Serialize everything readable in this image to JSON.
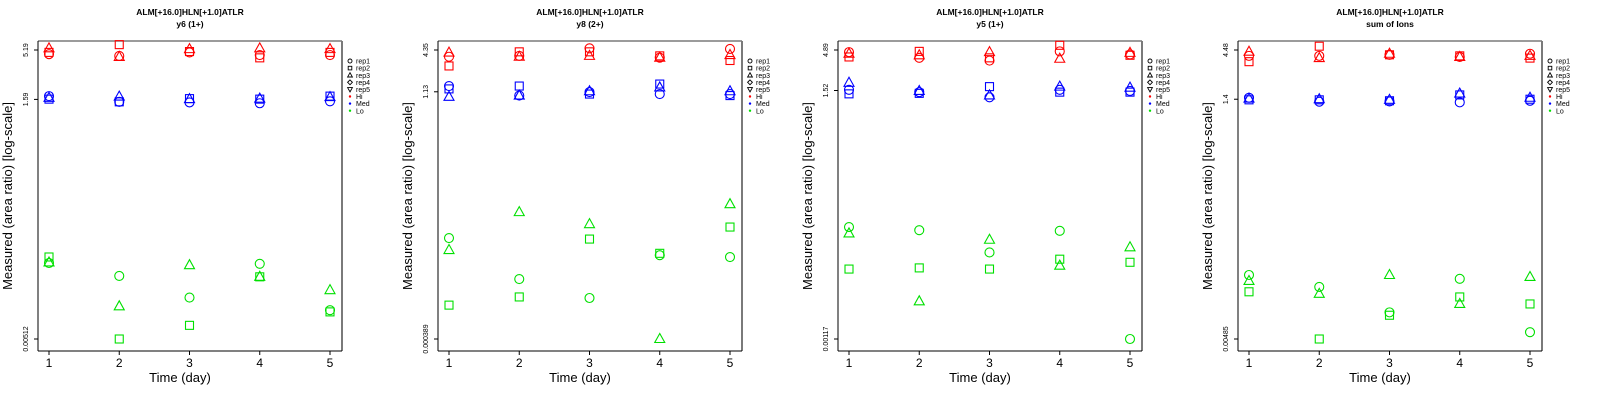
{
  "legend": {
    "shapes": [
      {
        "label": "rep1",
        "shape": "circle"
      },
      {
        "label": "rep2",
        "shape": "square"
      },
      {
        "label": "rep3",
        "shape": "triangle-up"
      },
      {
        "label": "rep4",
        "shape": "diamond"
      },
      {
        "label": "rep5",
        "shape": "triangle-down"
      }
    ],
    "levels": [
      {
        "label": "Hi",
        "color": "#ff0000"
      },
      {
        "label": "Med",
        "color": "#0000ff"
      },
      {
        "label": "Lo",
        "color": "#00e000"
      }
    ]
  },
  "chart_data": [
    {
      "type": "scatter",
      "title": "ALM[+16.0]HLN[+1.0]ATLR",
      "subtitle": "y6 (1+)",
      "xlabel": "Time (day)",
      "ylabel": "Measured (area ratio) [log-scale]",
      "xticks": [
        "1",
        "2",
        "3",
        "4",
        "5"
      ],
      "yticks": [
        {
          "value": 5.19,
          "label": "5.19"
        },
        {
          "value": 1.59,
          "label": "1.59"
        },
        {
          "value": 0.00512,
          "label": "0.00512"
        }
      ],
      "yscale": "log",
      "xlim": [
        0.8,
        5.2
      ],
      "legend_position": "right",
      "series": [
        {
          "level": "Hi",
          "rep": "rep1",
          "x": [
            1,
            2,
            3,
            4,
            5
          ],
          "y": [
            4.7,
            4.5,
            4.9,
            4.6,
            4.6
          ]
        },
        {
          "level": "Hi",
          "rep": "rep2",
          "x": [
            1,
            2,
            3,
            4,
            5
          ],
          "y": [
            4.9,
            5.9,
            5.0,
            4.3,
            4.9
          ]
        },
        {
          "level": "Hi",
          "rep": "rep3",
          "x": [
            1,
            2,
            3,
            4,
            5
          ],
          "y": [
            5.4,
            4.4,
            5.3,
            5.4,
            5.3
          ]
        },
        {
          "level": "Med",
          "rep": "rep1",
          "x": [
            1,
            2,
            3,
            4,
            5
          ],
          "y": [
            1.72,
            1.5,
            1.48,
            1.45,
            1.52
          ]
        },
        {
          "level": "Med",
          "rep": "rep2",
          "x": [
            1,
            2,
            3,
            4,
            5
          ],
          "y": [
            1.6,
            1.5,
            1.62,
            1.6,
            1.72
          ]
        },
        {
          "level": "Med",
          "rep": "rep3",
          "x": [
            1,
            2,
            3,
            4,
            5
          ],
          "y": [
            1.65,
            1.7,
            1.6,
            1.62,
            1.68
          ]
        },
        {
          "level": "Lo",
          "rep": "rep1",
          "x": [
            1,
            2,
            3,
            4,
            5
          ],
          "y": [
            0.0316,
            0.0232,
            0.0138,
            0.031,
            0.0102
          ]
        },
        {
          "level": "Lo",
          "rep": "rep2",
          "x": [
            1,
            2,
            3,
            4,
            5
          ],
          "y": [
            0.0365,
            0.00512,
            0.0071,
            0.0227,
            0.0098
          ]
        },
        {
          "level": "Lo",
          "rep": "rep3",
          "x": [
            1,
            2,
            3,
            4,
            5
          ],
          "y": [
            0.032,
            0.0112,
            0.03,
            0.0227,
            0.0165
          ]
        }
      ]
    },
    {
      "type": "scatter",
      "title": "ALM[+16.0]HLN[+1.0]ATLR",
      "subtitle": "y8 (2+)",
      "xlabel": "Time (day)",
      "ylabel": "Measured (area ratio) [log-scale]",
      "xticks": [
        "1",
        "2",
        "3",
        "4",
        "5"
      ],
      "yticks": [
        {
          "value": 4.35,
          "label": "4.35"
        },
        {
          "value": 1.13,
          "label": "1.13"
        },
        {
          "value": 0.000389,
          "label": "0.000389"
        }
      ],
      "yscale": "log",
      "xlim": [
        0.8,
        5.2
      ],
      "legend_position": "right",
      "series": [
        {
          "level": "Hi",
          "rep": "rep1",
          "x": [
            1,
            2,
            3,
            4,
            5
          ],
          "y": [
            3.5,
            3.6,
            4.6,
            3.4,
            4.5
          ]
        },
        {
          "level": "Hi",
          "rep": "rep2",
          "x": [
            1,
            2,
            3,
            4,
            5
          ],
          "y": [
            2.6,
            4.1,
            4.1,
            3.6,
            3.1
          ]
        },
        {
          "level": "Hi",
          "rep": "rep3",
          "x": [
            1,
            2,
            3,
            4,
            5
          ],
          "y": [
            4.0,
            3.5,
            3.6,
            3.4,
            3.7
          ]
        },
        {
          "level": "Med",
          "rep": "rep1",
          "x": [
            1,
            2,
            3,
            4,
            5
          ],
          "y": [
            1.36,
            1.0,
            1.12,
            1.05,
            1.05
          ]
        },
        {
          "level": "Med",
          "rep": "rep2",
          "x": [
            1,
            2,
            3,
            4,
            5
          ],
          "y": [
            1.24,
            1.36,
            1.05,
            1.45,
            1.0
          ]
        },
        {
          "level": "Med",
          "rep": "rep3",
          "x": [
            1,
            2,
            3,
            4,
            5
          ],
          "y": [
            0.96,
            1.0,
            1.15,
            1.3,
            1.15
          ]
        },
        {
          "level": "Lo",
          "rep": "rep1",
          "x": [
            1,
            2,
            3,
            4,
            5
          ],
          "y": [
            0.0101,
            0.00269,
            0.00146,
            0.0058,
            0.00547
          ]
        },
        {
          "level": "Lo",
          "rep": "rep2",
          "x": [
            1,
            2,
            3,
            4,
            5
          ],
          "y": [
            0.00116,
            0.00151,
            0.00977,
            0.00617,
            0.0144
          ]
        },
        {
          "level": "Lo",
          "rep": "rep3",
          "x": [
            1,
            2,
            3,
            4,
            5
          ],
          "y": [
            0.00686,
            0.0233,
            0.0158,
            0.000389,
            0.0301
          ]
        }
      ]
    },
    {
      "type": "scatter",
      "title": "ALM[+16.0]HLN[+1.0]ATLR",
      "subtitle": "y5 (1+)",
      "xlabel": "Time (day)",
      "ylabel": "Measured (area ratio) [log-scale]",
      "xticks": [
        "1",
        "2",
        "3",
        "4",
        "5"
      ],
      "yticks": [
        {
          "value": 4.89,
          "label": "4.89"
        },
        {
          "value": 1.52,
          "label": "1.52"
        },
        {
          "value": 0.00117,
          "label": "0.00117"
        }
      ],
      "yscale": "log",
      "xlim": [
        0.8,
        5.2
      ],
      "legend_position": "right",
      "series": [
        {
          "level": "Hi",
          "rep": "rep1",
          "x": [
            1,
            2,
            3,
            4,
            5
          ],
          "y": [
            4.6,
            3.9,
            3.6,
            4.7,
            4.3
          ]
        },
        {
          "level": "Hi",
          "rep": "rep2",
          "x": [
            1,
            2,
            3,
            4,
            5
          ],
          "y": [
            4.0,
            4.7,
            3.9,
            5.6,
            4.2
          ]
        },
        {
          "level": "Hi",
          "rep": "rep3",
          "x": [
            1,
            2,
            3,
            4,
            5
          ],
          "y": [
            4.4,
            4.2,
            4.6,
            3.8,
            4.5
          ]
        },
        {
          "level": "Med",
          "rep": "rep1",
          "x": [
            1,
            2,
            3,
            4,
            5
          ],
          "y": [
            1.55,
            1.45,
            1.25,
            1.55,
            1.5
          ]
        },
        {
          "level": "Med",
          "rep": "rep2",
          "x": [
            1,
            2,
            3,
            4,
            5
          ],
          "y": [
            1.38,
            1.4,
            1.7,
            1.45,
            1.45
          ]
        },
        {
          "level": "Med",
          "rep": "rep3",
          "x": [
            1,
            2,
            3,
            4,
            5
          ],
          "y": [
            1.9,
            1.5,
            1.32,
            1.7,
            1.65
          ]
        },
        {
          "level": "Lo",
          "rep": "rep1",
          "x": [
            1,
            2,
            3,
            4,
            5
          ],
          "y": [
            0.0296,
            0.027,
            0.0142,
            0.0265,
            0.00117
          ]
        },
        {
          "level": "Lo",
          "rep": "rep2",
          "x": [
            1,
            2,
            3,
            4,
            5
          ],
          "y": [
            0.0088,
            0.0091,
            0.0088,
            0.0117,
            0.0107
          ]
        },
        {
          "level": "Lo",
          "rep": "rep3",
          "x": [
            1,
            2,
            3,
            4,
            5
          ],
          "y": [
            0.0246,
            0.00347,
            0.0205,
            0.0097,
            0.0165
          ]
        }
      ]
    },
    {
      "type": "scatter",
      "title": "ALM[+16.0]HLN[+1.0]ATLR",
      "subtitle": "sum of Ions",
      "xlabel": "Time (day)",
      "ylabel": "Measured (area ratio) [log-scale]",
      "xticks": [
        "1",
        "2",
        "3",
        "4",
        "5"
      ],
      "yticks": [
        {
          "value": 4.48,
          "label": "4.48"
        },
        {
          "value": 1.4,
          "label": "1.4"
        },
        {
          "value": 0.00485,
          "label": "0.00485"
        }
      ],
      "yscale": "log",
      "xlim": [
        0.8,
        5.2
      ],
      "legend_position": "right",
      "series": [
        {
          "level": "Hi",
          "rep": "rep1",
          "x": [
            1,
            2,
            3,
            4,
            5
          ],
          "y": [
            3.9,
            3.9,
            4.0,
            3.8,
            4.1
          ]
        },
        {
          "level": "Hi",
          "rep": "rep2",
          "x": [
            1,
            2,
            3,
            4,
            5
          ],
          "y": [
            3.4,
            4.9,
            4.0,
            3.9,
            3.7
          ]
        },
        {
          "level": "Hi",
          "rep": "rep3",
          "x": [
            1,
            2,
            3,
            4,
            5
          ],
          "y": [
            4.3,
            3.7,
            4.1,
            3.8,
            3.9
          ]
        },
        {
          "level": "Med",
          "rep": "rep1",
          "x": [
            1,
            2,
            3,
            4,
            5
          ],
          "y": [
            1.45,
            1.32,
            1.33,
            1.3,
            1.35
          ]
        },
        {
          "level": "Med",
          "rep": "rep2",
          "x": [
            1,
            2,
            3,
            4,
            5
          ],
          "y": [
            1.38,
            1.38,
            1.35,
            1.55,
            1.4
          ]
        },
        {
          "level": "Med",
          "rep": "rep3",
          "x": [
            1,
            2,
            3,
            4,
            5
          ],
          "y": [
            1.42,
            1.4,
            1.38,
            1.6,
            1.45
          ]
        },
        {
          "level": "Lo",
          "rep": "rep1",
          "x": [
            1,
            2,
            3,
            4,
            5
          ],
          "y": [
            0.022,
            0.0166,
            0.0091,
            0.0201,
            0.0057
          ]
        },
        {
          "level": "Lo",
          "rep": "rep2",
          "x": [
            1,
            2,
            3,
            4,
            5
          ],
          "y": [
            0.0148,
            0.00485,
            0.0085,
            0.0131,
            0.0111
          ]
        },
        {
          "level": "Lo",
          "rep": "rep3",
          "x": [
            1,
            2,
            3,
            4,
            5
          ],
          "y": [
            0.0191,
            0.0141,
            0.022,
            0.0111,
            0.021
          ]
        }
      ]
    }
  ]
}
